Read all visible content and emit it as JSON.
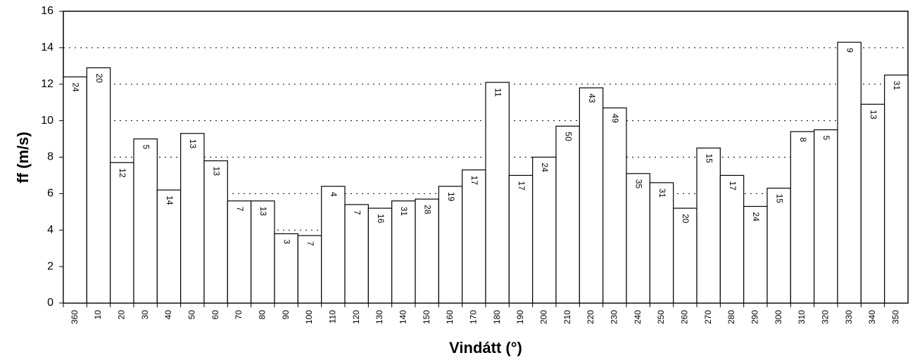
{
  "chart_data": {
    "type": "bar",
    "x_label": "Vindátt (°)",
    "y_label": "ff (m/s)",
    "categories": [
      "360",
      "10",
      "20",
      "30",
      "40",
      "50",
      "60",
      "70",
      "80",
      "90",
      "100",
      "110",
      "120",
      "130",
      "140",
      "150",
      "160",
      "170",
      "180",
      "190",
      "200",
      "210",
      "220",
      "230",
      "240",
      "250",
      "260",
      "270",
      "280",
      "290",
      "300",
      "310",
      "320",
      "330",
      "340",
      "350"
    ],
    "values": [
      12.4,
      12.9,
      7.7,
      9.0,
      6.2,
      9.3,
      7.8,
      5.6,
      5.6,
      3.8,
      3.7,
      6.4,
      5.4,
      5.2,
      5.6,
      5.7,
      6.4,
      7.3,
      12.1,
      7.0,
      8.0,
      9.7,
      11.8,
      10.7,
      7.1,
      6.6,
      5.2,
      8.5,
      7.0,
      5.3,
      6.3,
      9.4,
      9.5,
      14.3,
      10.9,
      12.5
    ],
    "bar_labels": [
      24,
      20,
      12,
      5,
      14,
      13,
      13,
      7,
      13,
      3,
      7,
      4,
      7,
      16,
      31,
      28,
      19,
      17,
      11,
      17,
      24,
      50,
      43,
      49,
      35,
      31,
      20,
      15,
      17,
      24,
      15,
      8,
      5,
      9,
      13,
      31
    ],
    "color": "#ffffff",
    "ylim": [
      0,
      16
    ],
    "yticks": [
      0,
      2,
      4,
      6,
      8,
      10,
      12,
      14,
      16
    ],
    "grid": true
  }
}
